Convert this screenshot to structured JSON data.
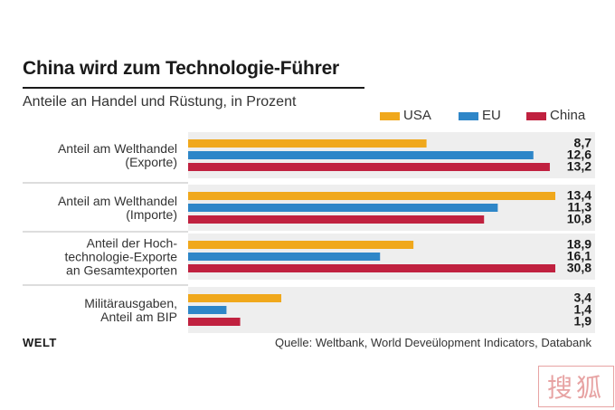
{
  "chart_data": {
    "type": "bar",
    "orientation": "horizontal",
    "title": "China wird zum Technologie-Führer",
    "subtitle": "Anteile an Handel und Rüstung, in Prozent",
    "categories": [
      [
        "Anteil am Welthandel",
        "(Exporte)"
      ],
      [
        "Anteil am Welthandel",
        "(Importe)"
      ],
      [
        "Anteil der Hoch-",
        "technologie-Exporte",
        "an Gesamtexporten"
      ],
      [
        "Militärausgaben,",
        "Anteil am BIP"
      ]
    ],
    "series": [
      {
        "name": "USA",
        "color": "#f0a81c",
        "values": [
          8.7,
          13.4,
          18.9,
          3.4
        ],
        "labels": [
          "8,7",
          "13,4",
          "18,9",
          "3,4"
        ]
      },
      {
        "name": "EU",
        "color": "#2e86c8",
        "values": [
          12.6,
          11.3,
          16.1,
          1.4
        ],
        "labels": [
          "12,6",
          "11,3",
          "16,1",
          "1,4"
        ]
      },
      {
        "name": "China",
        "color": "#c0213f",
        "values": [
          13.2,
          10.8,
          30.8,
          1.9
        ],
        "labels": [
          "13,2",
          "10,8",
          "30,8",
          "1,9"
        ]
      }
    ],
    "group_max": [
      13.4,
      13.4,
      30.8,
      13.4
    ],
    "legend_position": "top-right",
    "grid": false
  },
  "source": "Quelle: Weltbank, World Deveülopment Indicators, Databank",
  "logo": "WELT",
  "watermark_glyphs": "搜狐"
}
